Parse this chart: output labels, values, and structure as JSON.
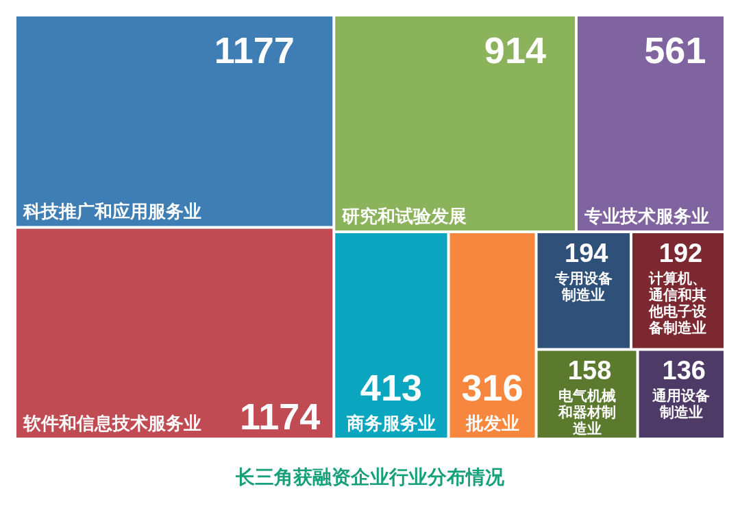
{
  "chart_data": {
    "type": "other",
    "title": "长三角获融资企业行业分布情况",
    "categories": [
      "科技推广和应用服务业",
      "软件和信息技术服务业",
      "研究和试验发展",
      "专业技术服务业",
      "商务服务业",
      "批发业",
      "专用设备制造业",
      "计算机、通信和其他电子设备制造业",
      "电气机械和器材制造业",
      "通用设备制造业"
    ],
    "values": [
      1177,
      1174,
      914,
      561,
      413,
      316,
      194,
      192,
      158,
      136
    ],
    "colors": [
      "#3f7db5",
      "#c04b53",
      "#8bb35c",
      "#7f64a0",
      "#0aa5bf",
      "#f7873f",
      "#2e5079",
      "#7b2830",
      "#5b7a2e",
      "#4e3a66"
    ],
    "data_labels": true
  }
}
